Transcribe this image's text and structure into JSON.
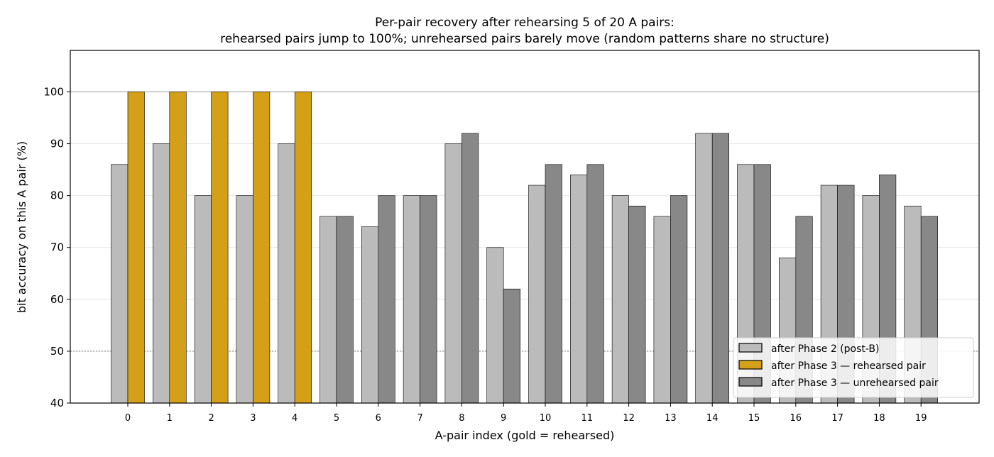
{
  "chart_data": {
    "type": "bar",
    "title_line1": "Per-pair recovery after rehearsing 5 of 20 A pairs:",
    "title_line2": "rehearsed pairs jump to 100%; unrehearsed pairs barely move (random patterns share no structure)",
    "xlabel": "A-pair index (gold = rehearsed)",
    "ylabel": "bit accuracy on this A pair (%)",
    "ylim": [
      40,
      108
    ],
    "yticks": [
      40,
      50,
      60,
      70,
      80,
      90,
      100
    ],
    "reference_lines": [
      50,
      100
    ],
    "grid": true,
    "legend_position": "bottom-right",
    "categories": [
      "0",
      "1",
      "2",
      "3",
      "4",
      "5",
      "6",
      "7",
      "8",
      "9",
      "10",
      "11",
      "12",
      "13",
      "14",
      "15",
      "16",
      "17",
      "18",
      "19"
    ],
    "rehearsed": [
      0,
      1,
      2,
      3,
      4
    ],
    "series": [
      {
        "name": "after Phase 2 (post-B)",
        "color": "#bbbbbb",
        "values": [
          86,
          90,
          80,
          80,
          90,
          76,
          74,
          80,
          90,
          70,
          82,
          84,
          80,
          76,
          92,
          86,
          68,
          82,
          80,
          78
        ]
      },
      {
        "name": "after Phase 3",
        "values": [
          100,
          100,
          100,
          100,
          100,
          76,
          80,
          80,
          92,
          62,
          86,
          86,
          78,
          80,
          92,
          86,
          76,
          82,
          84,
          76
        ]
      }
    ],
    "legend": [
      {
        "label": "after Phase 2 (post-B)",
        "color": "#bbbbbb"
      },
      {
        "label": "after Phase 3 — rehearsed pair",
        "color": "#d4a017"
      },
      {
        "label": "after Phase 3 — unrehearsed pair",
        "color": "#888888"
      }
    ]
  }
}
